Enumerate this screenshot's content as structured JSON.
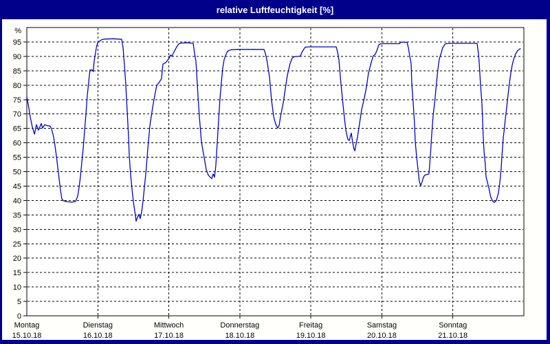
{
  "window": {
    "title": "relative Luftfeuchtigkeit [%]",
    "title_bar_color": "#00008b",
    "title_text_color": "#ffffff",
    "border_color": "#00008b",
    "background_color": "#fffffb"
  },
  "chart_data": {
    "type": "line",
    "title": "relative Luftfeuchtigkeit [%]",
    "ylabel": "%",
    "xlabel": "",
    "ylim": [
      0,
      100
    ],
    "y_ticks": [
      0,
      5,
      10,
      15,
      20,
      25,
      30,
      35,
      40,
      45,
      50,
      55,
      60,
      65,
      70,
      75,
      80,
      85,
      90,
      95
    ],
    "x_range_days": [
      0,
      7
    ],
    "grid": true,
    "grid_style": "dashed",
    "grid_color": "#000000",
    "frame_color": "#000000",
    "plot_background": "#ffffff",
    "line_color": "#0000cd",
    "legend": "none",
    "days": [
      {
        "name": "Montag",
        "date": "15.10.18"
      },
      {
        "name": "Dienstag",
        "date": "16.10.18"
      },
      {
        "name": "Mittwoch",
        "date": "17.10.18"
      },
      {
        "name": "Donnerstag",
        "date": "18.10.18"
      },
      {
        "name": "Freitag",
        "date": "19.10.18"
      },
      {
        "name": "Samstag",
        "date": "20.10.18"
      },
      {
        "name": "Sonntag",
        "date": "21.10.18"
      }
    ],
    "series": [
      {
        "name": "relative Luftfeuchtigkeit",
        "unit": "%",
        "points": [
          [
            0.0,
            76.0
          ],
          [
            0.029,
            72.0
          ],
          [
            0.048,
            69.0
          ],
          [
            0.077,
            65.5
          ],
          [
            0.107,
            63.0
          ],
          [
            0.136,
            66.3
          ],
          [
            0.165,
            64.4
          ],
          [
            0.203,
            66.7
          ],
          [
            0.223,
            65.1
          ],
          [
            0.252,
            66.3
          ],
          [
            0.281,
            66.0
          ],
          [
            0.329,
            65.8
          ],
          [
            0.349,
            64.8
          ],
          [
            0.378,
            62.0
          ],
          [
            0.397,
            59.0
          ],
          [
            0.416,
            55.5
          ],
          [
            0.436,
            51.5
          ],
          [
            0.455,
            47.5
          ],
          [
            0.474,
            43.5
          ],
          [
            0.494,
            40.5
          ],
          [
            0.523,
            39.8
          ],
          [
            0.571,
            39.6
          ],
          [
            0.629,
            39.4
          ],
          [
            0.687,
            39.7
          ],
          [
            0.716,
            41.5
          ],
          [
            0.736,
            44.5
          ],
          [
            0.755,
            48.3
          ],
          [
            0.774,
            53.0
          ],
          [
            0.794,
            58.0
          ],
          [
            0.813,
            64.0
          ],
          [
            0.833,
            70.0
          ],
          [
            0.852,
            76.5
          ],
          [
            0.871,
            81.0
          ],
          [
            0.881,
            83.5
          ],
          [
            0.891,
            85.3
          ],
          [
            0.92,
            85.3
          ],
          [
            0.934,
            84.7
          ],
          [
            0.949,
            88.3
          ],
          [
            0.968,
            91.3
          ],
          [
            0.983,
            93.5
          ],
          [
            0.997,
            94.7
          ],
          [
            1.026,
            95.3
          ],
          [
            1.055,
            95.8
          ],
          [
            1.094,
            96.0
          ],
          [
            1.22,
            96.1
          ],
          [
            1.336,
            95.9
          ],
          [
            1.355,
            93.0
          ],
          [
            1.375,
            87.0
          ],
          [
            1.394,
            80.0
          ],
          [
            1.414,
            71.0
          ],
          [
            1.433,
            62.0
          ],
          [
            1.443,
            55.5
          ],
          [
            1.462,
            49.0
          ],
          [
            1.481,
            44.0
          ],
          [
            1.501,
            39.5
          ],
          [
            1.52,
            36.4
          ],
          [
            1.539,
            32.8
          ],
          [
            1.559,
            34.2
          ],
          [
            1.578,
            35.2
          ],
          [
            1.597,
            33.7
          ],
          [
            1.617,
            36.0
          ],
          [
            1.636,
            39.7
          ],
          [
            1.656,
            44.5
          ],
          [
            1.675,
            49.2
          ],
          [
            1.704,
            57.9
          ],
          [
            1.733,
            66.0
          ],
          [
            1.772,
            72.3
          ],
          [
            1.801,
            76.3
          ],
          [
            1.83,
            79.9
          ],
          [
            1.868,
            81.1
          ],
          [
            1.897,
            82.3
          ],
          [
            1.917,
            87.3
          ],
          [
            1.956,
            87.8
          ],
          [
            1.985,
            88.7
          ],
          [
            2.004,
            89.3
          ],
          [
            2.024,
            90.5
          ],
          [
            2.043,
            90.0
          ],
          [
            2.072,
            91.5
          ],
          [
            2.111,
            93.3
          ],
          [
            2.14,
            94.3
          ],
          [
            2.169,
            94.6
          ],
          [
            2.256,
            94.7
          ],
          [
            2.343,
            94.5
          ],
          [
            2.362,
            91.0
          ],
          [
            2.382,
            88.3
          ],
          [
            2.411,
            76.3
          ],
          [
            2.43,
            69.1
          ],
          [
            2.459,
            60.3
          ],
          [
            2.498,
            54.8
          ],
          [
            2.527,
            50.7
          ],
          [
            2.556,
            48.8
          ],
          [
            2.585,
            48.0
          ],
          [
            2.604,
            47.6
          ],
          [
            2.624,
            49.2
          ],
          [
            2.643,
            48.1
          ],
          [
            2.662,
            52.0
          ],
          [
            2.682,
            60.0
          ],
          [
            2.701,
            68.0
          ],
          [
            2.72,
            75.0
          ],
          [
            2.74,
            81.0
          ],
          [
            2.759,
            86.0
          ],
          [
            2.778,
            88.7
          ],
          [
            2.798,
            90.3
          ],
          [
            2.827,
            91.8
          ],
          [
            2.875,
            92.3
          ],
          [
            2.972,
            92.4
          ],
          [
            3.108,
            92.4
          ],
          [
            3.253,
            92.4
          ],
          [
            3.34,
            92.4
          ],
          [
            3.36,
            91.0
          ],
          [
            3.379,
            89.0
          ],
          [
            3.398,
            86.0
          ],
          [
            3.418,
            82.8
          ],
          [
            3.447,
            74.7
          ],
          [
            3.476,
            69.1
          ],
          [
            3.505,
            66.5
          ],
          [
            3.534,
            65.1
          ],
          [
            3.553,
            66.0
          ],
          [
            3.573,
            69.1
          ],
          [
            3.611,
            73.9
          ],
          [
            3.64,
            78.7
          ],
          [
            3.669,
            83.5
          ],
          [
            3.708,
            87.5
          ],
          [
            3.737,
            89.4
          ],
          [
            3.766,
            89.9
          ],
          [
            3.824,
            90.0
          ],
          [
            3.853,
            90.1
          ],
          [
            3.872,
            91.3
          ],
          [
            3.901,
            92.5
          ],
          [
            3.921,
            93.2
          ],
          [
            3.979,
            93.3
          ],
          [
            4.095,
            93.3
          ],
          [
            4.231,
            93.3
          ],
          [
            4.357,
            93.3
          ],
          [
            4.376,
            91.5
          ],
          [
            4.395,
            89.0
          ],
          [
            4.425,
            80.3
          ],
          [
            4.463,
            70.8
          ],
          [
            4.492,
            64.4
          ],
          [
            4.521,
            61.2
          ],
          [
            4.541,
            60.8
          ],
          [
            4.57,
            63.4
          ],
          [
            4.589,
            60.0
          ],
          [
            4.608,
            57.9
          ],
          [
            4.618,
            57.2
          ],
          [
            4.657,
            62.0
          ],
          [
            4.686,
            66.7
          ],
          [
            4.715,
            71.5
          ],
          [
            4.754,
            75.6
          ],
          [
            4.783,
            79.4
          ],
          [
            4.812,
            84.2
          ],
          [
            4.85,
            87.8
          ],
          [
            4.879,
            90.2
          ],
          [
            4.908,
            90.7
          ],
          [
            4.937,
            92.5
          ],
          [
            4.957,
            94.0
          ],
          [
            4.986,
            94.4
          ],
          [
            5.063,
            94.4
          ],
          [
            5.16,
            94.4
          ],
          [
            5.247,
            94.4
          ],
          [
            5.267,
            94.9
          ],
          [
            5.354,
            94.9
          ],
          [
            5.373,
            93.0
          ],
          [
            5.393,
            90.0
          ],
          [
            5.412,
            87.5
          ],
          [
            5.422,
            80.3
          ],
          [
            5.441,
            73.9
          ],
          [
            5.46,
            66.7
          ],
          [
            5.47,
            60.3
          ],
          [
            5.489,
            55.5
          ],
          [
            5.509,
            50.7
          ],
          [
            5.528,
            46.5
          ],
          [
            5.547,
            45.2
          ],
          [
            5.567,
            46.5
          ],
          [
            5.586,
            48.1
          ],
          [
            5.605,
            48.8
          ],
          [
            5.663,
            49.2
          ],
          [
            5.683,
            55.5
          ],
          [
            5.702,
            62.7
          ],
          [
            5.721,
            69.1
          ],
          [
            5.75,
            75.6
          ],
          [
            5.77,
            81.1
          ],
          [
            5.789,
            85.4
          ],
          [
            5.808,
            89.0
          ],
          [
            5.837,
            91.3
          ],
          [
            5.857,
            93.0
          ],
          [
            5.895,
            94.4
          ],
          [
            5.992,
            94.5
          ],
          [
            6.108,
            94.5
          ],
          [
            6.224,
            94.5
          ],
          [
            6.341,
            94.5
          ],
          [
            6.36,
            91.0
          ],
          [
            6.37,
            88.3
          ],
          [
            6.389,
            80.3
          ],
          [
            6.408,
            73.9
          ],
          [
            6.418,
            68.4
          ],
          [
            6.428,
            62.0
          ],
          [
            6.438,
            57.2
          ],
          [
            6.457,
            52.4
          ],
          [
            6.467,
            48.3
          ],
          [
            6.505,
            44.5
          ],
          [
            6.534,
            41.1
          ],
          [
            6.563,
            39.7
          ],
          [
            6.583,
            39.3
          ],
          [
            6.612,
            40.0
          ],
          [
            6.641,
            42.5
          ],
          [
            6.66,
            46.0
          ],
          [
            6.679,
            50.5
          ],
          [
            6.689,
            54.8
          ],
          [
            6.699,
            58.0
          ],
          [
            6.709,
            61.5
          ],
          [
            6.728,
            65.5
          ],
          [
            6.738,
            68.0
          ],
          [
            6.757,
            72.0
          ],
          [
            6.776,
            76.5
          ],
          [
            6.796,
            80.5
          ],
          [
            6.815,
            84.0
          ],
          [
            6.834,
            86.8
          ],
          [
            6.854,
            88.8
          ],
          [
            6.883,
            90.8
          ],
          [
            6.912,
            92.0
          ],
          [
            6.95,
            92.7
          ]
        ]
      }
    ]
  }
}
